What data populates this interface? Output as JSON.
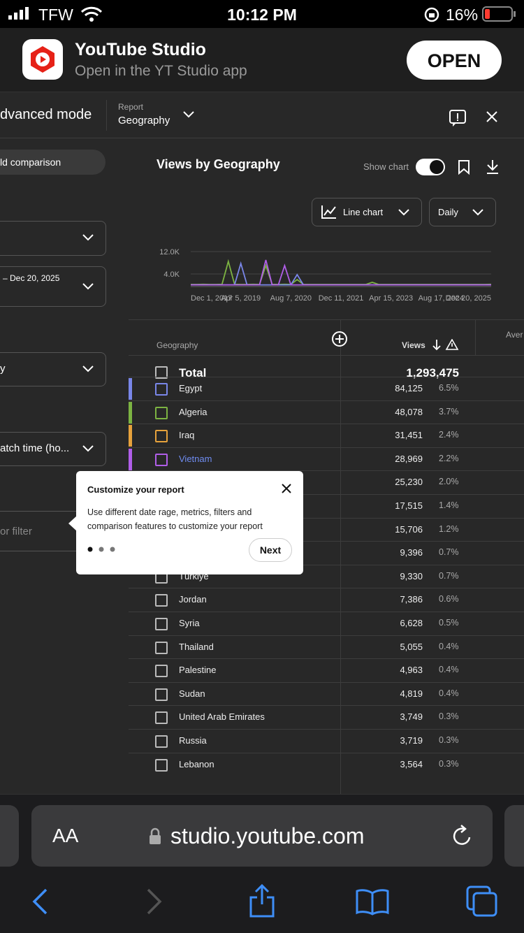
{
  "status_bar": {
    "carrier": "TFW",
    "time": "10:12 PM",
    "battery": "16%"
  },
  "app_banner": {
    "title": "YouTube Studio",
    "subtitle": "Open in the YT Studio app",
    "button": "OPEN"
  },
  "toolbar": {
    "mode": "dvanced mode",
    "report_label": "Report",
    "report_value": "Geography"
  },
  "side_panel": {
    "comparison": "ld comparison",
    "date_range": "– Dec 20, 2025",
    "dimension": "y",
    "metric": "atch time (ho...",
    "filter": "or filter"
  },
  "chart_header": {
    "title": "Views by Geography",
    "show_chart": "Show chart",
    "chart_type": "Line chart",
    "interval": "Daily"
  },
  "chart_data": {
    "type": "line",
    "categories": [
      "Dec 1, 2017",
      null,
      null,
      null,
      null,
      null,
      null,
      null,
      "Apr 5, 2019",
      null,
      null,
      null,
      null,
      null,
      null,
      null,
      "Aug 7, 2020",
      null,
      null,
      null,
      null,
      null,
      null,
      null,
      "Dec 11, 2021",
      null,
      null,
      null,
      null,
      null,
      null,
      null,
      "Apr 15, 2023",
      null,
      null,
      null,
      null,
      null,
      null,
      null,
      "Aug 17, 2024",
      null,
      null,
      null,
      null,
      null,
      null,
      null,
      "Dec 20, 2025"
    ],
    "series": [
      {
        "color": "#7cb342",
        "values": [
          250,
          250,
          300,
          250,
          250,
          300,
          8500,
          300,
          250,
          250,
          300,
          250,
          7000,
          300,
          250,
          300,
          250,
          2000,
          250,
          250,
          250,
          250,
          250,
          250,
          250,
          250,
          250,
          250,
          250,
          1000,
          250,
          250,
          250,
          250,
          250,
          250,
          250,
          250,
          250,
          250,
          250,
          250,
          250,
          250,
          250,
          250,
          250,
          250,
          300
        ]
      },
      {
        "color": "#7986e8",
        "values": [
          100,
          100,
          100,
          100,
          100,
          100,
          100,
          100,
          7750,
          100,
          100,
          100,
          100,
          100,
          100,
          100,
          100,
          3750,
          100,
          100,
          100,
          100,
          100,
          100,
          100,
          100,
          100,
          100,
          100,
          100,
          100,
          100,
          100,
          100,
          100,
          100,
          100,
          100,
          100,
          100,
          100,
          100,
          100,
          100,
          100,
          100,
          100,
          100,
          100
        ]
      },
      {
        "color": "#b05ee8",
        "values": [
          100,
          100,
          100,
          100,
          100,
          100,
          100,
          100,
          100,
          100,
          100,
          100,
          9000,
          100,
          100,
          7000,
          100,
          100,
          100,
          100,
          100,
          100,
          100,
          100,
          100,
          100,
          100,
          100,
          100,
          100,
          100,
          100,
          100,
          100,
          100,
          100,
          100,
          100,
          100,
          100,
          100,
          100,
          100,
          100,
          100,
          100,
          100,
          100,
          100
        ]
      }
    ],
    "ylim": [
      0,
      12000
    ],
    "yticks": [
      {
        "value": 4000,
        "label": "4.0K"
      },
      {
        "value": 12000,
        "label": "12.0K"
      }
    ],
    "grid": true
  },
  "table": {
    "header": {
      "dimension": "Geography",
      "metric": "Views",
      "next_column": "Aver"
    },
    "total": {
      "label": "Total",
      "views": "1,293,475"
    },
    "rows": [
      {
        "name": "Egypt",
        "views": "84,125",
        "share": "6.5%",
        "color": "#7986e8"
      },
      {
        "name": "Algeria",
        "views": "48,078",
        "share": "3.7%",
        "color": "#7cb342"
      },
      {
        "name": "Iraq",
        "views": "31,451",
        "share": "2.4%",
        "color": "#e6a23c"
      },
      {
        "name": "Vietnam",
        "views": "28,969",
        "share": "2.2%",
        "color": "#b05ee8"
      },
      {
        "name": null,
        "views": "25,230",
        "share": "2.0%"
      },
      {
        "name": null,
        "views": "17,515",
        "share": "1.4%"
      },
      {
        "name": null,
        "views": "15,706",
        "share": "1.2%"
      },
      {
        "name": null,
        "views": "9,396",
        "share": "0.7%"
      },
      {
        "name": "Türkiye",
        "views": "9,330",
        "share": "0.7%"
      },
      {
        "name": "Jordan",
        "views": "7,386",
        "share": "0.6%"
      },
      {
        "name": "Syria",
        "views": "6,628",
        "share": "0.5%"
      },
      {
        "name": "Thailand",
        "views": "5,055",
        "share": "0.4%"
      },
      {
        "name": "Palestine",
        "views": "4,963",
        "share": "0.4%"
      },
      {
        "name": "Sudan",
        "views": "4,819",
        "share": "0.4%"
      },
      {
        "name": "United Arab Emirates",
        "views": "3,749",
        "share": "0.3%"
      },
      {
        "name": "Russia",
        "views": "3,719",
        "share": "0.3%"
      },
      {
        "name": "Lebanon",
        "views": "3,564",
        "share": "0.3%"
      }
    ]
  },
  "popup": {
    "title": "Customize your report",
    "body": "Use different date rage, metrics, filters and comparison features to customize your report",
    "button": "Next"
  },
  "browser_bar": {
    "text_size": "AA",
    "url": "studio.youtube.com"
  }
}
